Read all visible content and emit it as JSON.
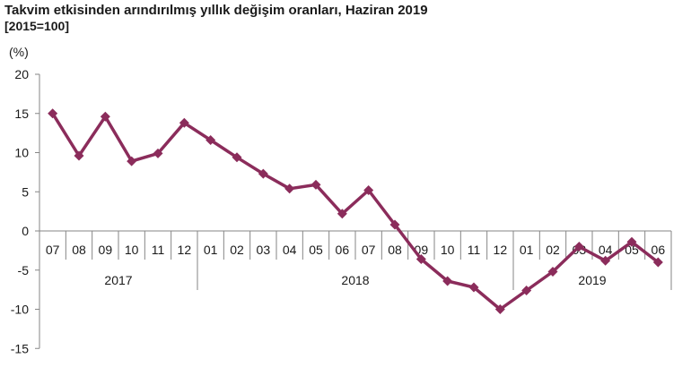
{
  "chart_data": {
    "type": "line",
    "title": "Takvim etkisinden arındırılmış yıllık değişim oranları, Haziran 2019",
    "subtitle": "[2015=100]",
    "ylabel": "(%)",
    "ylim": [
      -15,
      20
    ],
    "yticks": [
      "20",
      "15",
      "10",
      "5",
      "0",
      "-5",
      "-10",
      "-15"
    ],
    "categories": [
      "07",
      "08",
      "09",
      "10",
      "11",
      "12",
      "01",
      "02",
      "03",
      "04",
      "05",
      "06",
      "07",
      "08",
      "09",
      "10",
      "11",
      "12",
      "01",
      "02",
      "03",
      "04",
      "05",
      "06"
    ],
    "years": [
      {
        "label": "2017",
        "start": 0,
        "count": 6
      },
      {
        "label": "2018",
        "start": 6,
        "count": 12
      },
      {
        "label": "2019",
        "start": 18,
        "count": 6
      }
    ],
    "series": [
      {
        "color": "#8b2c5b",
        "values": [
          15.0,
          9.6,
          14.6,
          8.9,
          9.9,
          13.8,
          11.6,
          9.4,
          7.3,
          5.4,
          5.9,
          2.2,
          5.2,
          0.8,
          -3.6,
          -6.4,
          -7.2,
          -10.0,
          -7.6,
          -5.2,
          -2.0,
          -3.8,
          -1.4,
          -4.0
        ]
      }
    ],
    "grid": false,
    "legend": "none"
  }
}
